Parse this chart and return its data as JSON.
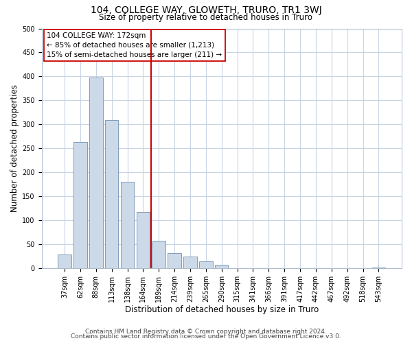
{
  "title": "104, COLLEGE WAY, GLOWETH, TRURO, TR1 3WJ",
  "subtitle": "Size of property relative to detached houses in Truro",
  "xlabel": "Distribution of detached houses by size in Truro",
  "ylabel": "Number of detached properties",
  "bar_labels": [
    "37sqm",
    "62sqm",
    "88sqm",
    "113sqm",
    "138sqm",
    "164sqm",
    "189sqm",
    "214sqm",
    "239sqm",
    "265sqm",
    "290sqm",
    "315sqm",
    "341sqm",
    "366sqm",
    "391sqm",
    "417sqm",
    "442sqm",
    "467sqm",
    "492sqm",
    "518sqm",
    "543sqm"
  ],
  "bar_heights": [
    29,
    264,
    398,
    309,
    181,
    117,
    58,
    32,
    25,
    15,
    7,
    1,
    0,
    0,
    0,
    0,
    0,
    0,
    0,
    0,
    2
  ],
  "bar_color": "#ccd9e8",
  "bar_edge_color": "#7090b0",
  "vline_x": 5.5,
  "vline_color": "#cc0000",
  "ylim": [
    0,
    500
  ],
  "yticks": [
    0,
    50,
    100,
    150,
    200,
    250,
    300,
    350,
    400,
    450,
    500
  ],
  "annotation_line1": "104 COLLEGE WAY: 172sqm",
  "annotation_line2": "← 85% of detached houses are smaller (1,213)",
  "annotation_line3": "15% of semi-detached houses are larger (211) →",
  "annotation_box_color": "#ffffff",
  "annotation_box_edge": "#cc0000",
  "footnote1": "Contains HM Land Registry data © Crown copyright and database right 2024.",
  "footnote2": "Contains public sector information licensed under the Open Government Licence v3.0.",
  "background_color": "#ffffff",
  "grid_color": "#c8d4e4",
  "title_fontsize": 10,
  "subtitle_fontsize": 8.5,
  "tick_fontsize": 7,
  "label_fontsize": 8.5,
  "annotation_fontsize": 7.5,
  "footnote_fontsize": 6.5
}
